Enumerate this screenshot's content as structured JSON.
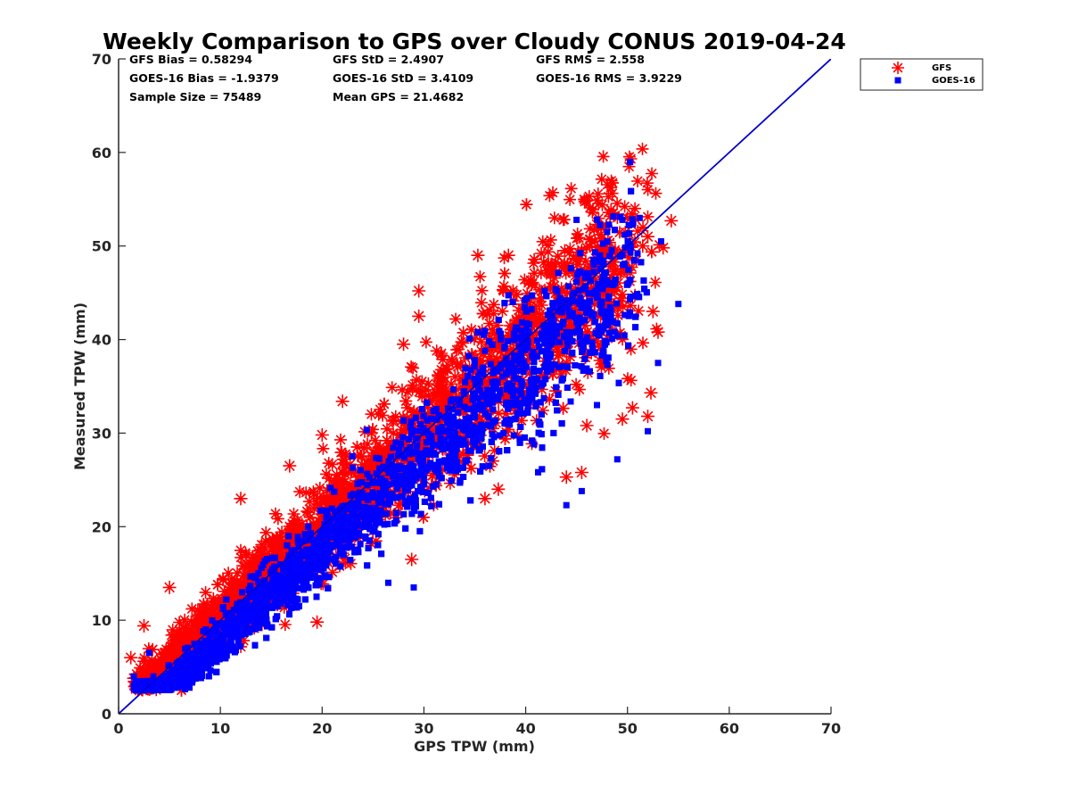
{
  "chart_data": {
    "type": "scatter",
    "title": "Weekly Comparison to GPS over Cloudy CONUS 2019-04-24",
    "xlabel": "GPS TPW (mm)",
    "ylabel": "Measured TPW (mm)",
    "xlim": [
      0,
      70
    ],
    "ylim": [
      0,
      70
    ],
    "xticks": [
      "0",
      "10",
      "20",
      "30",
      "40",
      "50",
      "60",
      "70"
    ],
    "yticks": [
      "0",
      "10",
      "20",
      "30",
      "40",
      "50",
      "60",
      "70"
    ],
    "grid": false,
    "legend_position": "outside-top-right",
    "stats": [
      {
        "text": "GFS Bias = 0.58294",
        "col": 0,
        "row": 0
      },
      {
        "text": "GFS StD = 2.4907",
        "col": 1,
        "row": 0
      },
      {
        "text": "GFS RMS = 2.558",
        "col": 2,
        "row": 0
      },
      {
        "text": "GOES-16 Bias = -1.9379",
        "col": 0,
        "row": 1
      },
      {
        "text": "GOES-16 StD = 3.4109",
        "col": 1,
        "row": 1
      },
      {
        "text": "GOES-16 RMS = 3.9229",
        "col": 2,
        "row": 1
      },
      {
        "text": "Sample Size = 75489",
        "col": 0,
        "row": 2
      },
      {
        "text": "Mean GPS = 21.4682",
        "col": 1,
        "row": 2
      }
    ],
    "reference_line": {
      "x": [
        0,
        70
      ],
      "y": [
        0,
        70
      ],
      "color": "#0000cc"
    },
    "series": [
      {
        "name": "GFS",
        "marker": "asterisk",
        "color": "#ff0000",
        "bias": 0.58,
        "std": 2.49,
        "outliers": [
          [
            2.5,
            9.4
          ],
          [
            1.5,
            3.8
          ],
          [
            1.2,
            6.0
          ],
          [
            5.0,
            13.5
          ],
          [
            12.0,
            23.0
          ],
          [
            16.8,
            26.5
          ],
          [
            20.0,
            29.8
          ],
          [
            22.0,
            33.4
          ],
          [
            28.0,
            39.5
          ],
          [
            29.5,
            42.5
          ],
          [
            29.5,
            45.2
          ],
          [
            35.3,
            49.0
          ],
          [
            38.3,
            49.0
          ],
          [
            42.5,
            48.0
          ],
          [
            47.0,
            52.3
          ],
          [
            50.0,
            53.0
          ],
          [
            51.5,
            50.0
          ],
          [
            52.0,
            51.0
          ],
          [
            53.5,
            49.8
          ],
          [
            54.3,
            52.7
          ],
          [
            52.5,
            43.0
          ],
          [
            53.0,
            40.8
          ],
          [
            52.3,
            34.3
          ],
          [
            52.0,
            31.8
          ],
          [
            50.5,
            32.7
          ],
          [
            49.5,
            31.5
          ],
          [
            45.5,
            25.8
          ],
          [
            44.0,
            25.3
          ],
          [
            46.0,
            30.8
          ],
          [
            28.8,
            16.5
          ],
          [
            19.5,
            9.8
          ],
          [
            37.3,
            24.0
          ],
          [
            36.0,
            23.0
          ]
        ]
      },
      {
        "name": "GOES-16",
        "marker": "square",
        "color": "#0000ff",
        "bias": -1.94,
        "std": 3.41,
        "outliers": [
          [
            45.0,
            52.8
          ],
          [
            49.5,
            52.8
          ],
          [
            51.2,
            53.0
          ],
          [
            53.3,
            50.5
          ],
          [
            48.0,
            51.5
          ],
          [
            55.0,
            43.8
          ],
          [
            49.0,
            27.2
          ],
          [
            52.0,
            30.2
          ],
          [
            44.0,
            22.3
          ],
          [
            45.5,
            23.8
          ],
          [
            29.0,
            13.5
          ],
          [
            26.5,
            14.0
          ],
          [
            3.0,
            6.5
          ],
          [
            1.5,
            4.0
          ],
          [
            2.5,
            2.8
          ],
          [
            53.0,
            37.5
          ],
          [
            47.0,
            33.0
          ]
        ]
      }
    ]
  }
}
